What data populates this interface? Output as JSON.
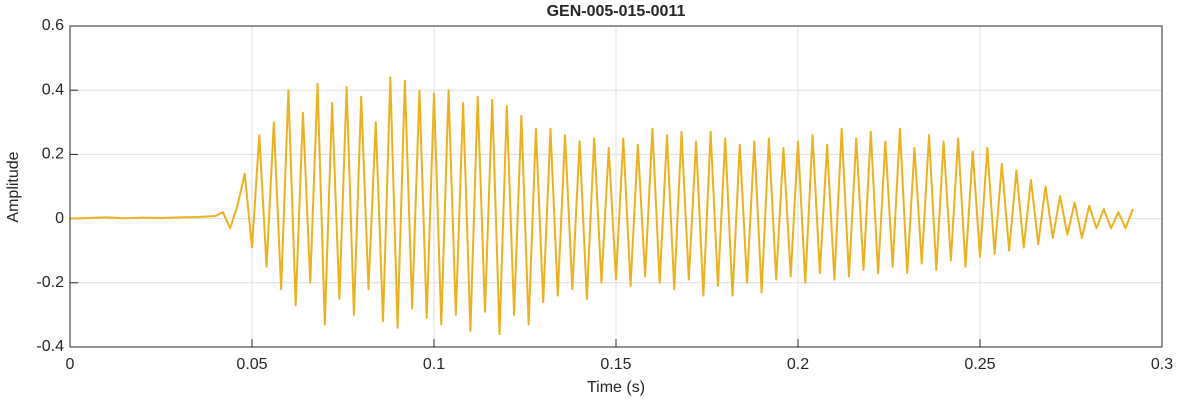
{
  "chart_data": {
    "type": "line",
    "title": "GEN-005-015-0011",
    "x_label": "Time (s)",
    "y_label": "Amplitude",
    "xlim": [
      0,
      0.3
    ],
    "ylim": [
      -0.4,
      0.6
    ],
    "xticks": [
      0,
      0.05,
      0.1,
      0.15,
      0.2,
      0.25,
      0.3
    ],
    "yticks": [
      -0.4,
      -0.2,
      0,
      0.2,
      0.4,
      0.6
    ],
    "grid": true,
    "series": [
      {
        "color": "#EDB120",
        "x": [
          0,
          0.005,
          0.01,
          0.015,
          0.02,
          0.025,
          0.03,
          0.035,
          0.04,
          0.042,
          0.044,
          0.046,
          0.048,
          0.05,
          0.052,
          0.054,
          0.056,
          0.058,
          0.06,
          0.062,
          0.064,
          0.066,
          0.068,
          0.07,
          0.072,
          0.074,
          0.076,
          0.078,
          0.08,
          0.082,
          0.084,
          0.086,
          0.088,
          0.09,
          0.092,
          0.094,
          0.096,
          0.098,
          0.1,
          0.102,
          0.104,
          0.106,
          0.108,
          0.11,
          0.112,
          0.114,
          0.116,
          0.118,
          0.12,
          0.122,
          0.124,
          0.126,
          0.128,
          0.13,
          0.132,
          0.134,
          0.136,
          0.138,
          0.14,
          0.142,
          0.144,
          0.146,
          0.148,
          0.15,
          0.152,
          0.154,
          0.156,
          0.158,
          0.16,
          0.162,
          0.164,
          0.166,
          0.168,
          0.17,
          0.172,
          0.174,
          0.176,
          0.178,
          0.18,
          0.182,
          0.184,
          0.186,
          0.188,
          0.19,
          0.192,
          0.194,
          0.196,
          0.198,
          0.2,
          0.202,
          0.204,
          0.206,
          0.208,
          0.21,
          0.212,
          0.214,
          0.216,
          0.218,
          0.22,
          0.222,
          0.224,
          0.226,
          0.228,
          0.23,
          0.232,
          0.234,
          0.236,
          0.238,
          0.24,
          0.242,
          0.244,
          0.246,
          0.248,
          0.25,
          0.252,
          0.254,
          0.256,
          0.258,
          0.26,
          0.262,
          0.264,
          0.266,
          0.268,
          0.27,
          0.272,
          0.274,
          0.276,
          0.278,
          0.28,
          0.282,
          0.284,
          0.286,
          0.288,
          0.29,
          0.292
        ],
        "values": [
          0,
          0.002,
          0.004,
          0.001,
          0.003,
          0.002,
          0.004,
          0.005,
          0.008,
          0.02,
          -0.03,
          0.04,
          0.14,
          -0.09,
          0.26,
          -0.15,
          0.3,
          -0.22,
          0.4,
          -0.27,
          0.33,
          -0.2,
          0.42,
          -0.33,
          0.36,
          -0.25,
          0.41,
          -0.3,
          0.38,
          -0.22,
          0.3,
          -0.32,
          0.44,
          -0.34,
          0.43,
          -0.28,
          0.4,
          -0.31,
          0.39,
          -0.33,
          0.4,
          -0.3,
          0.36,
          -0.35,
          0.38,
          -0.29,
          0.37,
          -0.36,
          0.35,
          -0.3,
          0.32,
          -0.33,
          0.28,
          -0.26,
          0.28,
          -0.24,
          0.26,
          -0.22,
          0.24,
          -0.25,
          0.25,
          -0.2,
          0.22,
          -0.19,
          0.25,
          -0.21,
          0.23,
          -0.18,
          0.28,
          -0.2,
          0.26,
          -0.22,
          0.27,
          -0.19,
          0.24,
          -0.24,
          0.27,
          -0.21,
          0.25,
          -0.24,
          0.23,
          -0.2,
          0.24,
          -0.23,
          0.25,
          -0.19,
          0.22,
          -0.18,
          0.24,
          -0.2,
          0.26,
          -0.17,
          0.23,
          -0.19,
          0.28,
          -0.18,
          0.25,
          -0.16,
          0.27,
          -0.17,
          0.24,
          -0.15,
          0.28,
          -0.17,
          0.22,
          -0.14,
          0.26,
          -0.16,
          0.24,
          -0.13,
          0.25,
          -0.15,
          0.21,
          -0.12,
          0.22,
          -0.11,
          0.17,
          -0.1,
          0.15,
          -0.09,
          0.12,
          -0.08,
          0.1,
          -0.06,
          0.07,
          -0.05,
          0.05,
          -0.06,
          0.04,
          -0.03,
          0.03,
          -0.03,
          0.02,
          -0.03,
          0.03
        ]
      }
    ]
  }
}
